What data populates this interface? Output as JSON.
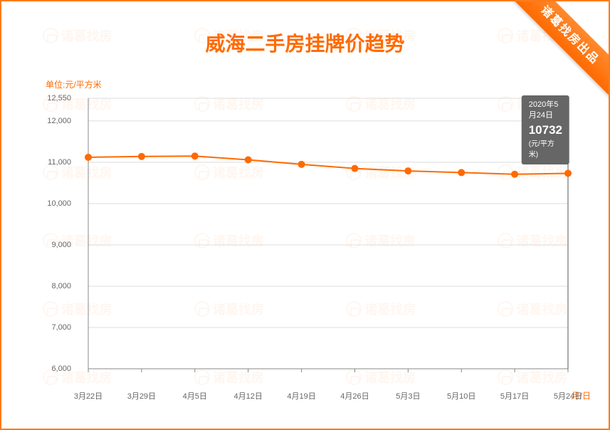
{
  "title": "威海二手房挂牌价趋势",
  "ribbon": "诸葛找房出品",
  "watermark_text": "诸葛找房",
  "y_unit_label": "单位:元/平方米",
  "x_unit_label": "月/日",
  "chart": {
    "type": "line",
    "x_labels": [
      "3月22日",
      "3月29日",
      "4月5日",
      "4月12日",
      "4月19日",
      "4月26日",
      "5月3日",
      "5月10日",
      "5月17日",
      "5月24日"
    ],
    "values": [
      11120,
      11140,
      11150,
      11060,
      10950,
      10850,
      10790,
      10750,
      10710,
      10732
    ],
    "y_ticks": [
      6000,
      7000,
      8000,
      9000,
      10000,
      11000,
      12000,
      12550
    ],
    "y_tick_labels": [
      "6,000",
      "7,000",
      "8,000",
      "9,000",
      "10,000",
      "11,000",
      "12,000",
      "12,550"
    ],
    "ylim": [
      6000,
      12550
    ],
    "line_color": "#ff6a00",
    "marker_color": "#ff6a00",
    "marker_radius": 5,
    "line_width": 2,
    "grid_color": "#dcdcdc",
    "axis_color": "#888",
    "background_color": "#ffffff",
    "tooltip_bg": "#666666",
    "tooltip_color": "#ffffff",
    "highlight_line_color": "#555555",
    "title_color": "#ff6a00",
    "title_fontsize": 28,
    "tick_fontsize": 11,
    "tick_color": "#666666"
  },
  "tooltip": {
    "index": 9,
    "date": "2020年5月24日",
    "value": "10732",
    "unit": "(元/平方米)"
  }
}
